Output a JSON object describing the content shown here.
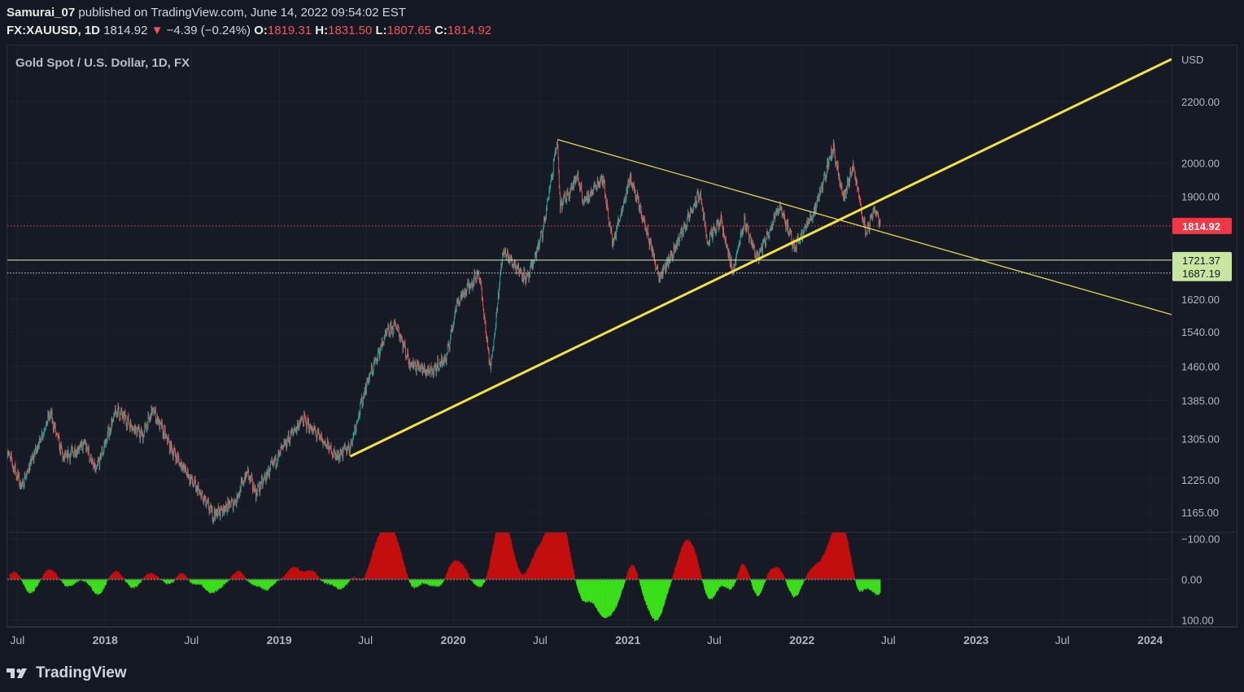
{
  "header": {
    "author": "Samurai_07",
    "published": "published on TradingView.com, June 14, 2022 09:54:02 EST",
    "symbol": "FX:XAUUSD, 1D",
    "last": "1814.92",
    "change_arrow": "▼",
    "change": "−4.39 (−0.24%)",
    "o_label": "O:",
    "o_value": "1819.31",
    "h_label": "H:",
    "h_value": "1831.50",
    "l_label": "L:",
    "l_value": "1807.65",
    "c_label": "C:",
    "c_value": "1814.92"
  },
  "footer": {
    "brand": "TradingView"
  },
  "chart_data": {
    "type": "candlestick",
    "title": "Gold Spot / U.S. Dollar, 1D, FX",
    "currency": "USD",
    "y_scale": "log",
    "ylim": [
      1130,
      2400
    ],
    "x_range": [
      "2017-06-10",
      "2024-02-15"
    ],
    "x_ticks": [
      {
        "date": "2017-07-01",
        "label": "Jul"
      },
      {
        "date": "2018-01-01",
        "label": "2018"
      },
      {
        "date": "2018-07-01",
        "label": "Jul"
      },
      {
        "date": "2019-01-01",
        "label": "2019"
      },
      {
        "date": "2019-07-01",
        "label": "Jul"
      },
      {
        "date": "2020-01-01",
        "label": "2020"
      },
      {
        "date": "2020-07-01",
        "label": "Jul"
      },
      {
        "date": "2021-01-01",
        "label": "2021"
      },
      {
        "date": "2021-07-01",
        "label": "Jul"
      },
      {
        "date": "2022-01-01",
        "label": "2022"
      },
      {
        "date": "2022-07-01",
        "label": "Jul"
      },
      {
        "date": "2023-01-01",
        "label": "2023"
      },
      {
        "date": "2023-07-01",
        "label": "Jul"
      },
      {
        "date": "2024-01-01",
        "label": "2024"
      }
    ],
    "y_ticks": [
      "2200.00",
      "2000.00",
      "1900.00",
      "1620.00",
      "1540.00",
      "1460.00",
      "1385.00",
      "1305.00",
      "1225.00",
      "1165.00"
    ],
    "price_path": [
      [
        "2017-06-10",
        1280
      ],
      [
        "2017-07-10",
        1212
      ],
      [
        "2017-09-08",
        1357
      ],
      [
        "2017-10-06",
        1265
      ],
      [
        "2017-11-20",
        1295
      ],
      [
        "2017-12-12",
        1240
      ],
      [
        "2018-01-25",
        1365
      ],
      [
        "2018-03-20",
        1310
      ],
      [
        "2018-04-11",
        1365
      ],
      [
        "2018-05-20",
        1285
      ],
      [
        "2018-08-16",
        1160
      ],
      [
        "2018-10-01",
        1185
      ],
      [
        "2018-10-26",
        1240
      ],
      [
        "2018-11-13",
        1200
      ],
      [
        "2019-01-30",
        1320
      ],
      [
        "2019-02-20",
        1345
      ],
      [
        "2019-05-02",
        1270
      ],
      [
        "2019-05-30",
        1290
      ],
      [
        "2019-07-03",
        1420
      ],
      [
        "2019-08-13",
        1535
      ],
      [
        "2019-09-04",
        1557
      ],
      [
        "2019-10-01",
        1470
      ],
      [
        "2019-11-12",
        1445
      ],
      [
        "2019-12-18",
        1480
      ],
      [
        "2020-01-08",
        1610
      ],
      [
        "2020-02-24",
        1690
      ],
      [
        "2020-03-19",
        1450
      ],
      [
        "2020-04-14",
        1745
      ],
      [
        "2020-06-05",
        1670
      ],
      [
        "2020-07-07",
        1800
      ],
      [
        "2020-08-06",
        2070
      ],
      [
        "2020-08-12",
        1870
      ],
      [
        "2020-09-18",
        1960
      ],
      [
        "2020-10-01",
        1880
      ],
      [
        "2020-11-09",
        1960
      ],
      [
        "2020-11-30",
        1765
      ],
      [
        "2021-01-06",
        1955
      ],
      [
        "2021-02-03",
        1830
      ],
      [
        "2021-03-08",
        1680
      ],
      [
        "2021-04-01",
        1730
      ],
      [
        "2021-06-01",
        1910
      ],
      [
        "2021-06-17",
        1770
      ],
      [
        "2021-07-15",
        1830
      ],
      [
        "2021-08-09",
        1690
      ],
      [
        "2021-09-03",
        1830
      ],
      [
        "2021-09-29",
        1725
      ],
      [
        "2021-11-16",
        1875
      ],
      [
        "2021-12-15",
        1755
      ],
      [
        "2022-01-25",
        1850
      ],
      [
        "2022-03-08",
        2050
      ],
      [
        "2022-03-29",
        1890
      ],
      [
        "2022-04-18",
        1990
      ],
      [
        "2022-05-16",
        1790
      ],
      [
        "2022-06-03",
        1870
      ],
      [
        "2022-06-14",
        1815
      ]
    ],
    "current_price": 1814.92,
    "horizontal_levels": [
      {
        "value": 1721.37,
        "label": "1721.37",
        "color": "#c8e6a0"
      },
      {
        "value": 1687.19,
        "label": "1687.19",
        "color": "#c8e6a0"
      }
    ],
    "trendlines": [
      {
        "name": "ascending-support",
        "from": [
          "2019-05-30",
          1270
        ],
        "to": [
          "2024-02-15",
          2350
        ],
        "color": "#f2e141"
      },
      {
        "name": "descending-resistance",
        "from": [
          "2020-08-06",
          2075
        ],
        "to": [
          "2024-02-15",
          1582
        ],
        "color": "#e8d44d"
      }
    ],
    "oscillator": {
      "ylim": [
        -115,
        115
      ],
      "y_ticks": [
        "−100.00",
        "0.00",
        "100.00"
      ],
      "peaks": [
        [
          "2017-06-28",
          -20
        ],
        [
          "2017-07-27",
          35
        ],
        [
          "2017-09-08",
          -25
        ],
        [
          "2017-10-15",
          18
        ],
        [
          "2017-12-17",
          37
        ],
        [
          "2018-01-24",
          -20
        ],
        [
          "2018-03-01",
          22
        ],
        [
          "2018-04-05",
          -15
        ],
        [
          "2018-05-20",
          15
        ],
        [
          "2018-06-10",
          -22
        ],
        [
          "2018-07-01",
          14
        ],
        [
          "2018-08-10",
          30
        ],
        [
          "2018-09-01",
          12
        ],
        [
          "2018-10-10",
          -22
        ],
        [
          "2018-11-01",
          14
        ],
        [
          "2018-12-05",
          25
        ],
        [
          "2019-02-01",
          -30
        ],
        [
          "2019-03-10",
          -22
        ],
        [
          "2019-04-05",
          10
        ],
        [
          "2019-05-10",
          24
        ],
        [
          "2019-06-10",
          -10
        ],
        [
          "2019-06-28",
          24
        ],
        [
          "2019-07-25",
          -55
        ],
        [
          "2019-08-15",
          -70
        ],
        [
          "2019-09-05",
          -55
        ],
        [
          "2019-10-05",
          36
        ],
        [
          "2019-11-15",
          12
        ],
        [
          "2019-12-10",
          20
        ],
        [
          "2019-12-28",
          -40
        ],
        [
          "2020-01-20",
          -30
        ],
        [
          "2020-02-26",
          -14
        ],
        [
          "2020-03-12",
          80
        ],
        [
          "2020-04-01",
          -118
        ],
        [
          "2020-04-18",
          -80
        ],
        [
          "2020-05-20",
          12
        ],
        [
          "2020-06-20",
          -40
        ],
        [
          "2020-07-25",
          -110
        ],
        [
          "2020-08-20",
          -140
        ],
        [
          "2020-09-05",
          62
        ],
        [
          "2020-10-01",
          40
        ],
        [
          "2020-11-01",
          38
        ],
        [
          "2020-11-25",
          82
        ],
        [
          "2021-01-12",
          -50
        ],
        [
          "2021-02-01",
          32
        ],
        [
          "2021-02-26",
          42
        ],
        [
          "2021-03-10",
          65
        ],
        [
          "2021-03-30",
          -15
        ],
        [
          "2021-04-25",
          -30
        ],
        [
          "2021-05-10",
          -55
        ],
        [
          "2021-05-28",
          -60
        ],
        [
          "2021-06-17",
          92
        ],
        [
          "2021-07-10",
          -20
        ],
        [
          "2021-08-10",
          35
        ],
        [
          "2021-08-28",
          -50
        ],
        [
          "2021-10-01",
          45
        ],
        [
          "2021-10-25",
          -25
        ],
        [
          "2021-11-20",
          -38
        ],
        [
          "2021-12-15",
          52
        ],
        [
          "2022-01-10",
          -25
        ],
        [
          "2022-02-01",
          -20
        ],
        [
          "2022-03-08",
          -60
        ],
        [
          "2022-03-25",
          -85
        ],
        [
          "2022-04-10",
          -25
        ],
        [
          "2022-04-25",
          48
        ],
        [
          "2022-05-22",
          -35
        ],
        [
          "2022-06-05",
          78
        ],
        [
          "2022-06-14",
          -28
        ]
      ]
    }
  }
}
